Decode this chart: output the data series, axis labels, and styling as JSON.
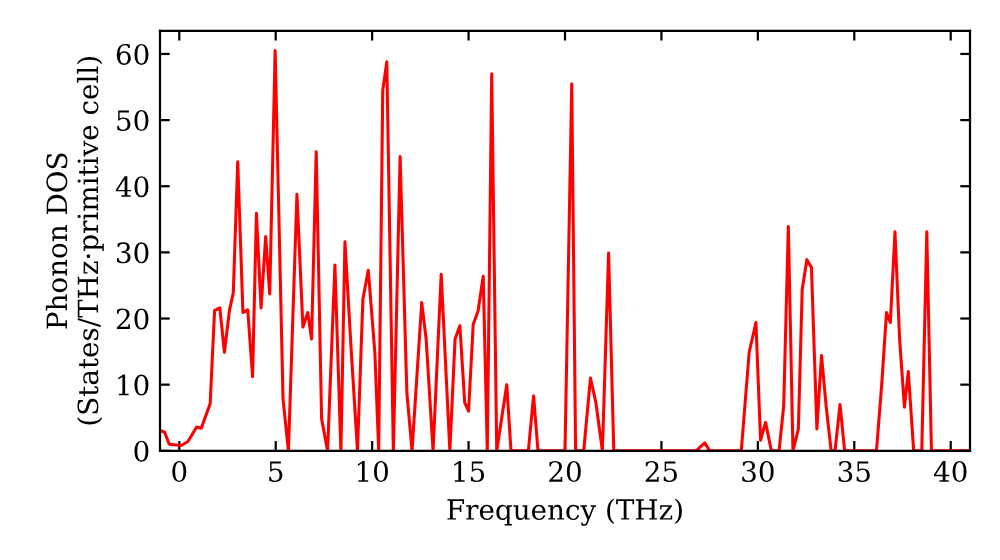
{
  "chart_data": {
    "type": "line",
    "xlabel": "Frequency (THz)",
    "ylabel": "Phonon DOS\n(States/THz·primitive cell)",
    "xlim": [
      -1,
      41
    ],
    "ylim": [
      0,
      63.5
    ],
    "xticks": [
      0,
      5,
      10,
      15,
      20,
      25,
      30,
      35,
      40
    ],
    "yticks": [
      0,
      10,
      20,
      30,
      40,
      50,
      60
    ],
    "grid": false,
    "legend": false,
    "series": [
      {
        "color": "#ff0000",
        "line_style": "solid",
        "marker": "none",
        "x": [
          -0.93,
          -0.76,
          -0.52,
          0.1,
          0.45,
          0.9,
          1.14,
          1.6,
          1.83,
          2.1,
          2.34,
          2.6,
          2.8,
          3.03,
          3.3,
          3.55,
          3.8,
          4.0,
          4.24,
          4.48,
          4.69,
          4.97,
          5.38,
          5.66,
          6.1,
          6.41,
          6.66,
          6.86,
          7.1,
          7.38,
          7.69,
          8.07,
          8.38,
          8.59,
          8.9,
          9.24,
          9.52,
          9.8,
          10.14,
          10.34,
          10.55,
          10.76,
          11.1,
          11.45,
          11.8,
          12.07,
          12.12,
          12.57,
          12.8,
          13.16,
          13.58,
          14.03,
          14.3,
          14.55,
          14.8,
          15.0,
          15.24,
          15.49,
          15.76,
          15.97,
          16.2,
          16.46,
          16.98,
          17.2,
          18.1,
          18.37,
          18.6,
          20.0,
          20.35,
          20.55,
          20.97,
          21.32,
          21.6,
          21.94,
          22.26,
          22.53,
          26.8,
          27.25,
          27.5,
          29.14,
          29.55,
          29.9,
          30.14,
          30.4,
          30.7,
          31.1,
          31.34,
          31.58,
          31.82,
          32.1,
          32.3,
          32.54,
          32.78,
          33.06,
          33.3,
          33.54,
          33.8,
          34.0,
          34.26,
          34.5,
          36.15,
          36.43,
          36.67,
          36.87,
          37.11,
          37.35,
          37.6,
          37.8,
          38.08,
          38.5,
          38.76,
          39.0,
          41.0
        ],
        "values": [
          3.0,
          2.8,
          1.0,
          0.8,
          1.4,
          3.6,
          3.4,
          7.1,
          21.2,
          21.6,
          14.9,
          21.2,
          23.9,
          43.7,
          20.9,
          21.3,
          11.2,
          35.9,
          21.6,
          32.4,
          23.7,
          60.5,
          7.8,
          0,
          38.8,
          18.7,
          20.9,
          16.9,
          45.2,
          4.8,
          0,
          28.1,
          0,
          31.6,
          15.9,
          0,
          22.9,
          27.3,
          14.9,
          0,
          54.5,
          58.8,
          0,
          44.5,
          8.8,
          0,
          2.3,
          22.4,
          16.9,
          0,
          26.7,
          0,
          16.9,
          18.9,
          7.3,
          6.0,
          19.1,
          21.1,
          26.4,
          0,
          57.0,
          0,
          10.0,
          0,
          0,
          8.3,
          0,
          0,
          55.5,
          0,
          0,
          11.0,
          7.3,
          0,
          29.9,
          0,
          0,
          1.2,
          0,
          0,
          14.9,
          19.4,
          1.6,
          4.3,
          0,
          0,
          6.8,
          33.9,
          0,
          3.3,
          24.4,
          28.9,
          27.7,
          3.3,
          14.4,
          6.8,
          0,
          0,
          7.0,
          0,
          0,
          10.3,
          20.9,
          19.4,
          33.1,
          16.9,
          6.6,
          12.0,
          0,
          0,
          33.1,
          0,
          0
        ]
      }
    ]
  }
}
